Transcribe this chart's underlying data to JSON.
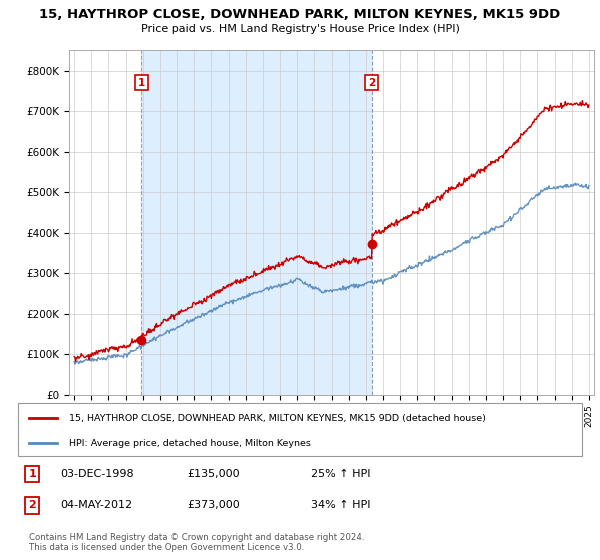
{
  "title": "15, HAYTHROP CLOSE, DOWNHEAD PARK, MILTON KEYNES, MK15 9DD",
  "subtitle": "Price paid vs. HM Land Registry's House Price Index (HPI)",
  "legend_line1": "15, HAYTHROP CLOSE, DOWNHEAD PARK, MILTON KEYNES, MK15 9DD (detached house)",
  "legend_line2": "HPI: Average price, detached house, Milton Keynes",
  "sale1_date": "03-DEC-1998",
  "sale1_price": "£135,000",
  "sale1_hpi": "25% ↑ HPI",
  "sale2_date": "04-MAY-2012",
  "sale2_price": "£373,000",
  "sale2_hpi": "34% ↑ HPI",
  "footer": "Contains HM Land Registry data © Crown copyright and database right 2024.\nThis data is licensed under the Open Government Licence v3.0.",
  "red_color": "#cc0000",
  "blue_color": "#5588bb",
  "vline1_color": "#dd8888",
  "vline2_color": "#8899bb",
  "shade_color": "#ddeeff",
  "grid_color": "#cccccc",
  "background_color": "#ffffff",
  "ylim": [
    0,
    850000
  ],
  "yticks": [
    0,
    100000,
    200000,
    300000,
    400000,
    500000,
    600000,
    700000,
    800000
  ],
  "ytick_labels": [
    "£0",
    "£100K",
    "£200K",
    "£300K",
    "£400K",
    "£500K",
    "£600K",
    "£700K",
    "£800K"
  ],
  "sale1_x": 1998.92,
  "sale1_y": 135000,
  "sale2_x": 2012.34,
  "sale2_y": 373000,
  "xlim_left": 1994.7,
  "xlim_right": 2025.3
}
